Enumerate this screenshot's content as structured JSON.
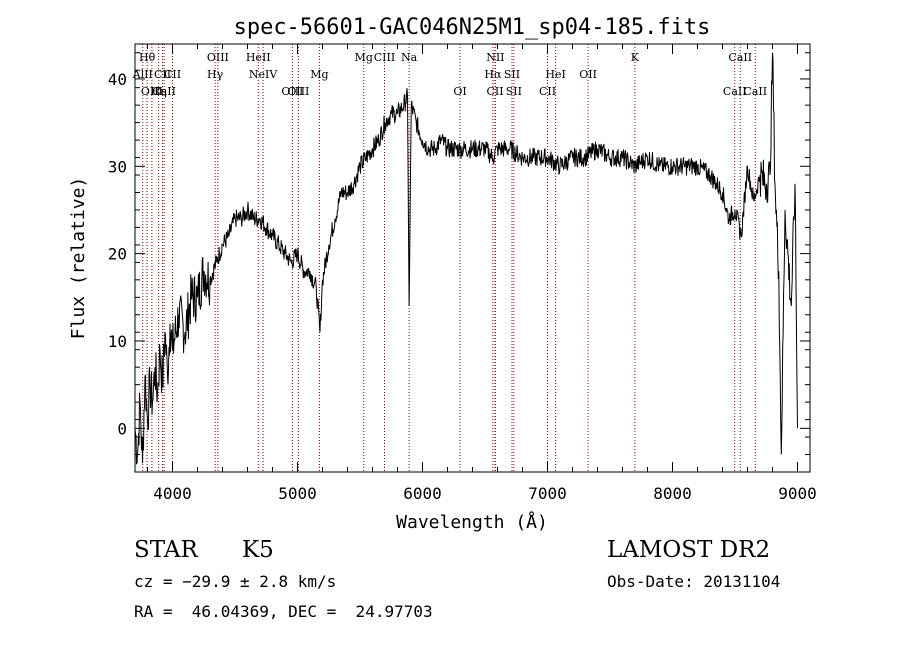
{
  "chart_data": {
    "type": "line",
    "title": "spec-56601-GAC046N25M1_sp04-185.fits",
    "xlabel": "Wavelength (Å)",
    "ylabel": "Flux (relative)",
    "xlim": [
      3700,
      9100
    ],
    "ylim": [
      -5,
      44
    ],
    "xticks": [
      4000,
      5000,
      6000,
      7000,
      8000,
      9000
    ],
    "yticks": [
      0,
      10,
      20,
      30,
      40
    ],
    "grid": false,
    "line_color": "#000000",
    "marker_color": "#8b0000",
    "series": [
      {
        "x": [
          3700,
          3720,
          3740,
          3760,
          3780,
          3800,
          3820,
          3840,
          3860,
          3880,
          3900,
          3920,
          3940,
          3960,
          3980,
          4000,
          4050,
          4100,
          4150,
          4200,
          4250,
          4300,
          4350,
          4400,
          4450,
          4500,
          4550,
          4600,
          4650,
          4700,
          4750,
          4800,
          4850,
          4900,
          4950,
          5000,
          5050,
          5100,
          5150,
          5180,
          5200,
          5250,
          5300,
          5350,
          5400,
          5450,
          5500,
          5550,
          5600,
          5650,
          5700,
          5750,
          5800,
          5850,
          5880,
          5893,
          5910,
          5950,
          6000,
          6050,
          6100,
          6150,
          6200,
          6300,
          6400,
          6500,
          6563,
          6600,
          6700,
          6800,
          6900,
          7000,
          7100,
          7200,
          7300,
          7400,
          7500,
          7600,
          7700,
          7800,
          7900,
          8000,
          8100,
          8200,
          8300,
          8400,
          8450,
          8500,
          8550,
          8600,
          8650,
          8700,
          8750,
          8780,
          8800,
          8820,
          8850,
          8870,
          8900,
          8950,
          8980,
          9000
        ],
        "y": [
          0,
          -3,
          3,
          -4,
          6,
          1,
          5,
          3,
          7,
          4,
          9,
          5,
          11,
          6,
          12,
          9,
          13,
          11,
          15,
          15,
          18,
          17,
          19,
          21,
          22,
          24,
          24,
          25,
          24,
          24,
          23,
          22,
          21,
          20,
          19,
          20,
          18,
          18,
          16,
          11,
          17,
          21,
          24,
          27,
          27,
          28,
          30,
          31,
          32,
          33,
          35,
          36,
          36,
          37,
          38,
          14,
          37,
          35,
          33,
          32,
          32,
          33,
          32,
          32,
          32,
          32,
          31,
          32,
          32,
          31,
          31,
          31,
          30,
          31,
          31,
          32,
          31,
          31,
          30,
          31,
          30,
          30,
          30,
          30,
          29,
          27,
          24,
          25,
          22,
          30,
          26,
          29,
          28,
          29,
          43,
          28,
          18,
          -3,
          25,
          14,
          28,
          0
        ]
      }
    ],
    "lines": [
      {
        "name": "Hθ",
        "x": 3797,
        "row": 1
      },
      {
        "name": "AlII",
        "x": 3762,
        "row": 2
      },
      {
        "name": "OIII",
        "x": 3835,
        "row": 3
      },
      {
        "name": "Hη",
        "x": 3889,
        "row": 3
      },
      {
        "name": "CaII",
        "x": 3933,
        "row": 3
      },
      {
        "name": "CII",
        "x": 3920,
        "row": 2
      },
      {
        "name": "CII",
        "x": 4000,
        "row": 2
      },
      {
        "name": "OIII",
        "x": 4363,
        "row": 1
      },
      {
        "name": "Hγ",
        "x": 4341,
        "row": 2
      },
      {
        "name": "HeII",
        "x": 4686,
        "row": 1
      },
      {
        "name": "NeIV",
        "x": 4725,
        "row": 2
      },
      {
        "name": "OIII",
        "x": 4959,
        "row": 3
      },
      {
        "name": "OIII",
        "x": 5007,
        "row": 3
      },
      {
        "name": "Mg",
        "x": 5175,
        "row": 2
      },
      {
        "name": "Mg",
        "x": 5530,
        "row": 1
      },
      {
        "name": "CIII",
        "x": 5696,
        "row": 1
      },
      {
        "name": "Na",
        "x": 5893,
        "row": 1
      },
      {
        "name": "OI",
        "x": 6300,
        "row": 3
      },
      {
        "name": "NII",
        "x": 6583,
        "row": 1
      },
      {
        "name": "Hα",
        "x": 6563,
        "row": 2
      },
      {
        "name": "SII",
        "x": 6716,
        "row": 2
      },
      {
        "name": "SII",
        "x": 6731,
        "row": 3
      },
      {
        "name": "CII",
        "x": 6580,
        "row": 3
      },
      {
        "name": "CII",
        "x": 7000,
        "row": 3
      },
      {
        "name": "OII",
        "x": 7325,
        "row": 2
      },
      {
        "name": "K",
        "x": 7699,
        "row": 1
      },
      {
        "name": "HeI",
        "x": 7065,
        "row": 2
      },
      {
        "name": "CaII",
        "x": 8542,
        "row": 1
      },
      {
        "name": "CaII",
        "x": 8498,
        "row": 3
      },
      {
        "name": "CaII",
        "x": 8662,
        "row": 3
      }
    ]
  },
  "info": {
    "class": "STAR",
    "subclass": "K5",
    "survey": "LAMOST DR2",
    "cz": "cz = −29.9 ± 2.8 km/s",
    "obs_date": "Obs-Date: 20131104",
    "coords": "RA =  46.04369, DEC =  24.97703"
  }
}
